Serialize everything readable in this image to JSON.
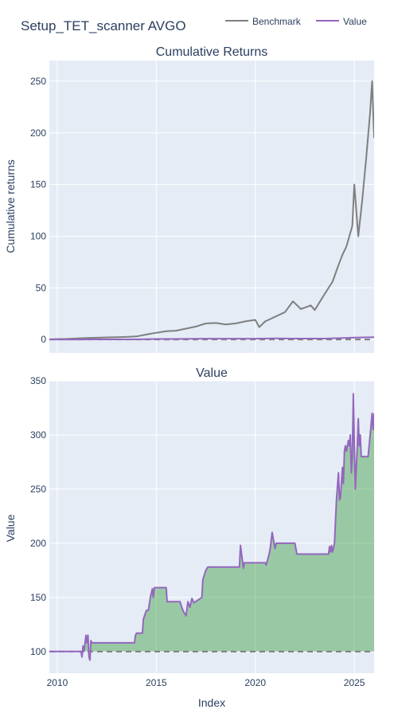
{
  "figure": {
    "title": "Setup_TET_scanner AVGO",
    "legend_position": "top-right",
    "background": "#ffffff",
    "plot_background": "#e5ecf6",
    "grid_color": "#ffffff",
    "text_color": "#2a3f5f",
    "x_axis_title": "Index",
    "x_tick_labels": [
      "2010",
      "2015",
      "2020",
      "2025"
    ]
  },
  "chart_data": [
    {
      "type": "line",
      "title": "Cumulative Returns",
      "ylabel": "Cumulative returns",
      "xlabel": "Index",
      "xlim": [
        2009.6,
        2026.0
      ],
      "ylim": [
        -13,
        270
      ],
      "x_ticks": [
        2010,
        2015,
        2020,
        2025
      ],
      "y_ticks": [
        0,
        50,
        100,
        150,
        200,
        250
      ],
      "grid": true,
      "legend": [
        "Benchmark",
        "Value"
      ],
      "series": [
        {
          "name": "Benchmark",
          "color": "#7f7f7f",
          "x": [
            2009.6,
            2010.0,
            2010.5,
            2011.0,
            2011.5,
            2012.0,
            2012.5,
            2013.0,
            2013.5,
            2014.0,
            2014.5,
            2015.0,
            2015.5,
            2016.0,
            2016.5,
            2017.0,
            2017.5,
            2018.0,
            2018.5,
            2019.0,
            2019.5,
            2020.0,
            2020.2,
            2020.5,
            2021.0,
            2021.5,
            2021.9,
            2022.3,
            2022.8,
            2023.0,
            2023.5,
            2023.9,
            2024.2,
            2024.4,
            2024.6,
            2024.9,
            2025.0,
            2025.2,
            2025.4,
            2025.6,
            2025.8,
            2025.9,
            2026.0
          ],
          "y": [
            0.2,
            0.4,
            0.6,
            1.0,
            1.4,
            1.7,
            2.0,
            2.2,
            2.5,
            3.0,
            4.8,
            6.5,
            8.0,
            8.5,
            10.5,
            12.5,
            15.5,
            16.0,
            14.5,
            15.5,
            17.5,
            19.0,
            12.0,
            17.5,
            22.0,
            26.5,
            37.0,
            29.5,
            33.0,
            28.5,
            44.0,
            56.0,
            72.0,
            82.0,
            90.0,
            110.0,
            150.0,
            100.0,
            135.0,
            175.0,
            220.0,
            250.0,
            195.0
          ]
        },
        {
          "name": "Value",
          "color": "#9467bd",
          "x": [
            2009.6,
            2011.0,
            2012.0,
            2014.0,
            2015.0,
            2016.0,
            2017.5,
            2019.0,
            2020.0,
            2021.0,
            2022.0,
            2023.5,
            2024.5,
            2025.0,
            2026.0
          ],
          "y": [
            0.0,
            0.0,
            0.1,
            0.1,
            0.5,
            0.5,
            0.8,
            0.8,
            0.8,
            1.0,
            0.9,
            0.9,
            1.5,
            1.8,
            2.2
          ]
        }
      ],
      "reference_line": {
        "y": 0,
        "style": "dashed",
        "color": "#7f7f7f"
      }
    },
    {
      "type": "area",
      "title": "Value",
      "ylabel": "Value",
      "xlabel": "Index",
      "xlim": [
        2009.6,
        2026.0
      ],
      "ylim": [
        80,
        350
      ],
      "x_ticks": [
        2010,
        2015,
        2020,
        2025
      ],
      "y_ticks": [
        100,
        150,
        200,
        250,
        300,
        350
      ],
      "grid": true,
      "fill_color": "#3ba041",
      "fill_baseline": 100,
      "series": [
        {
          "name": "Value",
          "color": "#9467bd",
          "x": [
            2009.6,
            2011.2,
            2011.25,
            2011.3,
            2011.35,
            2011.45,
            2011.5,
            2011.55,
            2011.6,
            2011.65,
            2011.7,
            2011.75,
            2013.9,
            2013.95,
            2014.0,
            2014.3,
            2014.35,
            2014.5,
            2014.6,
            2014.7,
            2014.8,
            2014.85,
            2014.9,
            2015.5,
            2015.55,
            2016.2,
            2016.3,
            2016.4,
            2016.5,
            2016.6,
            2016.7,
            2016.8,
            2016.9,
            2017.3,
            2017.35,
            2017.5,
            2017.6,
            2019.2,
            2019.25,
            2019.4,
            2019.45,
            2020.5,
            2020.55,
            2020.7,
            2020.75,
            2020.85,
            2021.0,
            2021.05,
            2021.1,
            2021.2,
            2022.0,
            2022.05,
            2022.1,
            2022.2,
            2023.7,
            2023.75,
            2023.8,
            2023.85,
            2023.9,
            2024.0,
            2024.1,
            2024.2,
            2024.25,
            2024.3,
            2024.4,
            2024.45,
            2024.5,
            2024.55,
            2024.6,
            2024.7,
            2024.75,
            2024.8,
            2024.85,
            2024.9,
            2024.95,
            2025.0,
            2025.05,
            2025.1,
            2025.15,
            2025.2,
            2025.25,
            2025.3,
            2025.35,
            2025.4,
            2025.5,
            2025.55,
            2025.6,
            2025.7,
            2025.8,
            2025.85,
            2025.9,
            2025.95,
            2026.0
          ],
          "y": [
            100,
            100,
            95,
            105,
            100,
            115,
            108,
            115,
            95,
            92,
            110,
            108,
            108,
            115,
            117,
            117,
            130,
            138,
            138,
            150,
            158,
            150,
            159,
            159,
            146,
            146,
            140,
            136,
            133,
            146,
            141,
            149,
            145,
            150,
            166,
            175,
            178,
            178,
            198,
            177,
            182,
            182,
            180,
            190,
            195,
            210,
            195,
            200,
            200,
            200,
            200,
            195,
            190,
            190,
            190,
            197,
            192,
            198,
            192,
            200,
            240,
            265,
            240,
            242,
            270,
            255,
            285,
            290,
            285,
            295,
            290,
            300,
            265,
            280,
            338,
            290,
            250,
            270,
            290,
            315,
            290,
            300,
            280,
            280,
            280,
            280,
            280,
            280,
            300,
            310,
            320,
            305,
            320
          ]
        }
      ],
      "reference_line": {
        "y": 100,
        "style": "dashed",
        "color": "#7f7f7f"
      }
    }
  ]
}
